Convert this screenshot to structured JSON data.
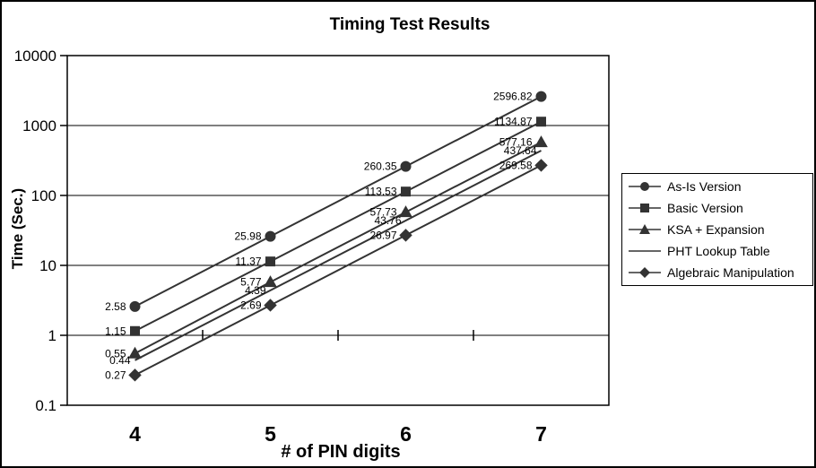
{
  "chart_data": {
    "type": "line",
    "title": "Timing Test Results",
    "xlabel": "# of PIN digits",
    "ylabel": "Time (Sec.)",
    "yscale": "log",
    "ylim": [
      0.1,
      10000
    ],
    "y_tick_labels": [
      "10000",
      "1000",
      "100",
      "10",
      "1",
      "0.1"
    ],
    "categories": [
      "4",
      "5",
      "6",
      "7"
    ],
    "grid": "horizontal decade gridlines on",
    "legend_position": "right",
    "data_labels": "shown, 2 decimals, left of each point",
    "series": [
      {
        "name": "As-Is Version",
        "marker": "circle",
        "values": [
          2.58,
          25.98,
          260.35,
          2596.82
        ]
      },
      {
        "name": "Basic Version",
        "marker": "square",
        "values": [
          1.15,
          11.37,
          113.53,
          1134.87
        ]
      },
      {
        "name": "KSA + Expansion",
        "marker": "triangle",
        "values": [
          0.55,
          5.77,
          57.73,
          577.16
        ]
      },
      {
        "name": "PHT Lookup Table",
        "marker": "none",
        "values": [
          0.44,
          4.39,
          43.76,
          437.64
        ]
      },
      {
        "name": "Algebraic Manipulation",
        "marker": "diamond",
        "values": [
          0.27,
          2.69,
          26.97,
          269.58
        ]
      }
    ],
    "colors": {
      "series_stroke": "#333333",
      "marker_fill": "#333333",
      "grid_stroke": "#000000",
      "plot_border": "#000000",
      "text": "#000000",
      "background": "#ffffff"
    }
  }
}
